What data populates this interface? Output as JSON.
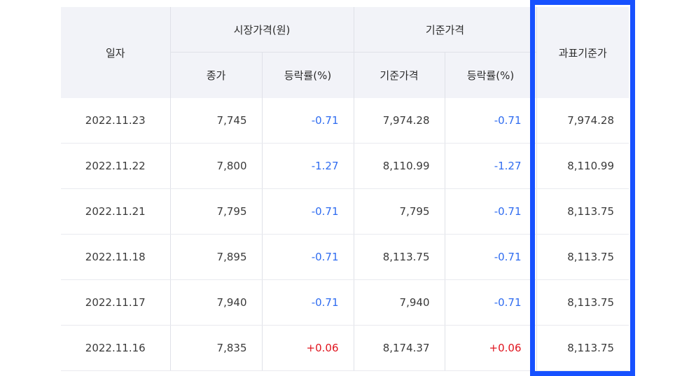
{
  "header": {
    "date": "일자",
    "market_group": "시장가격(원)",
    "close": "종가",
    "market_change": "등락률(%)",
    "base_group": "기준가격",
    "base_price": "기준가격",
    "base_change": "등락률(%)",
    "tax_base": "과표기준가"
  },
  "rows": [
    {
      "date": "2022.11.23",
      "close": "7,745",
      "market_change": "-0.71",
      "base_price": "7,974.28",
      "base_change": "-0.71",
      "tax_base": "7,974.28"
    },
    {
      "date": "2022.11.22",
      "close": "7,800",
      "market_change": "-1.27",
      "base_price": "8,110.99",
      "base_change": "-1.27",
      "tax_base": "8,110.99"
    },
    {
      "date": "2022.11.21",
      "close": "7,795",
      "market_change": "-0.71",
      "base_price": "7,795",
      "base_change": "-0.71",
      "tax_base": "8,113.75"
    },
    {
      "date": "2022.11.18",
      "close": "7,895",
      "market_change": "-0.71",
      "base_price": "8,113.75",
      "base_change": "-0.71",
      "tax_base": "8,113.75"
    },
    {
      "date": "2022.11.17",
      "close": "7,940",
      "market_change": "-0.71",
      "base_price": "7,940",
      "base_change": "-0.71",
      "tax_base": "8,113.75"
    },
    {
      "date": "2022.11.16",
      "close": "7,835",
      "market_change": "+0.06",
      "base_price": "8,174.37",
      "base_change": "+0.06",
      "tax_base": "8,113.75"
    }
  ],
  "colors": {
    "negative": "#2f6cf0",
    "positive": "#e0141e",
    "highlight": "#1751ff",
    "header_bg": "#f2f3f8"
  }
}
